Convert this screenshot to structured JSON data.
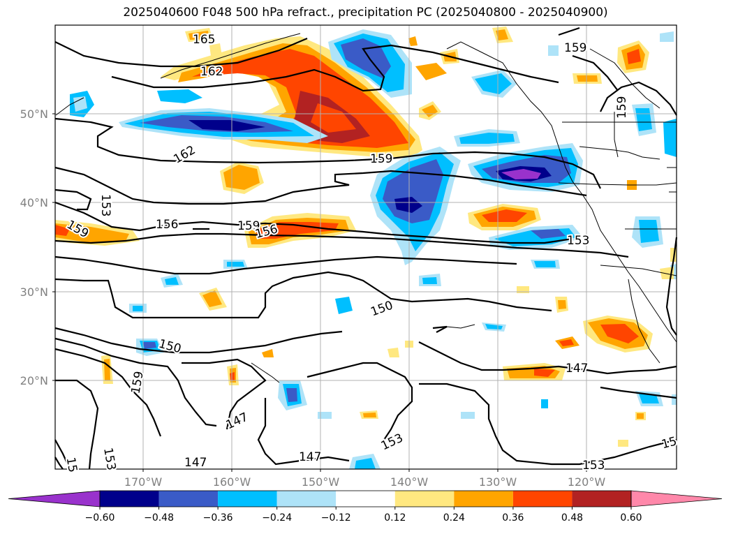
{
  "title": "2025040600 F048 500 hPa refract., precipitation PC (2025040800 - 2025040900)",
  "map": {
    "lat_ticks": [
      "50°N",
      "40°N",
      "30°N",
      "20°N"
    ],
    "lon_ticks": [
      "170°W",
      "160°W",
      "150°W",
      "140°W",
      "130°W",
      "120°W"
    ],
    "contour_labels": [
      "165",
      "162",
      "162",
      "159",
      "159",
      "159",
      "159",
      "159",
      "159",
      "153",
      "156",
      "156",
      "153",
      "150",
      "150",
      "147",
      "147",
      "147",
      "147",
      "153",
      "153",
      "153",
      "15",
      "15"
    ]
  },
  "colorbar": {
    "ticks": [
      "−0.60",
      "−0.48",
      "−0.36",
      "−0.24",
      "−0.12",
      "0.12",
      "0.24",
      "0.36",
      "0.48",
      "0.60"
    ],
    "colors": [
      "#9932cc",
      "#00008b",
      "#3a5bc7",
      "#00bfff",
      "#aee3f8",
      "#ffffff",
      "#ffe880",
      "#ffa500",
      "#ff4500",
      "#b22222",
      "#ff88aa"
    ]
  }
}
